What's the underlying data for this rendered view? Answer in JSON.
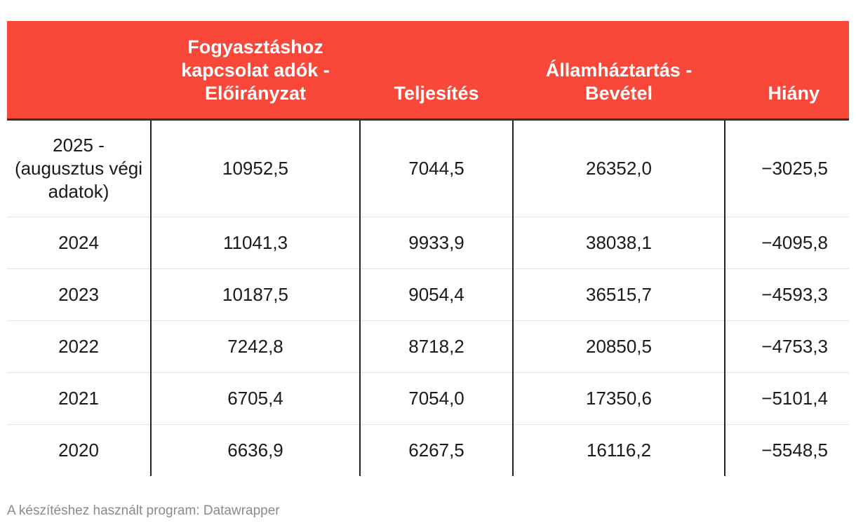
{
  "chart_data": {
    "type": "table",
    "columns": [
      "",
      "Fogyasztáshoz kapcsolat adók - Előirányzat",
      "Teljesítés",
      "Államháztartás - Bevétel",
      "Hiány"
    ],
    "rows": [
      [
        "2025 - (augusztus végi adatok)",
        "10952,5",
        "7044,5",
        "26352,0",
        "−3025,5"
      ],
      [
        "2024",
        "11041,3",
        "9933,9",
        "38038,1",
        "−4095,8"
      ],
      [
        "2023",
        "10187,5",
        "9054,4",
        "36515,7",
        "−4593,3"
      ],
      [
        "2022",
        "7242,8",
        "8718,2",
        "20850,5",
        "−4753,3"
      ],
      [
        "2021",
        "6705,4",
        "7054,0",
        "17350,6",
        "−5101,4"
      ],
      [
        "2020",
        "6636,9",
        "6267,5",
        "16116,2",
        "−5548,5"
      ]
    ],
    "header_color": "#f9473a"
  },
  "footer": {
    "source": "A készítéshez használt program: Datawrapper"
  }
}
